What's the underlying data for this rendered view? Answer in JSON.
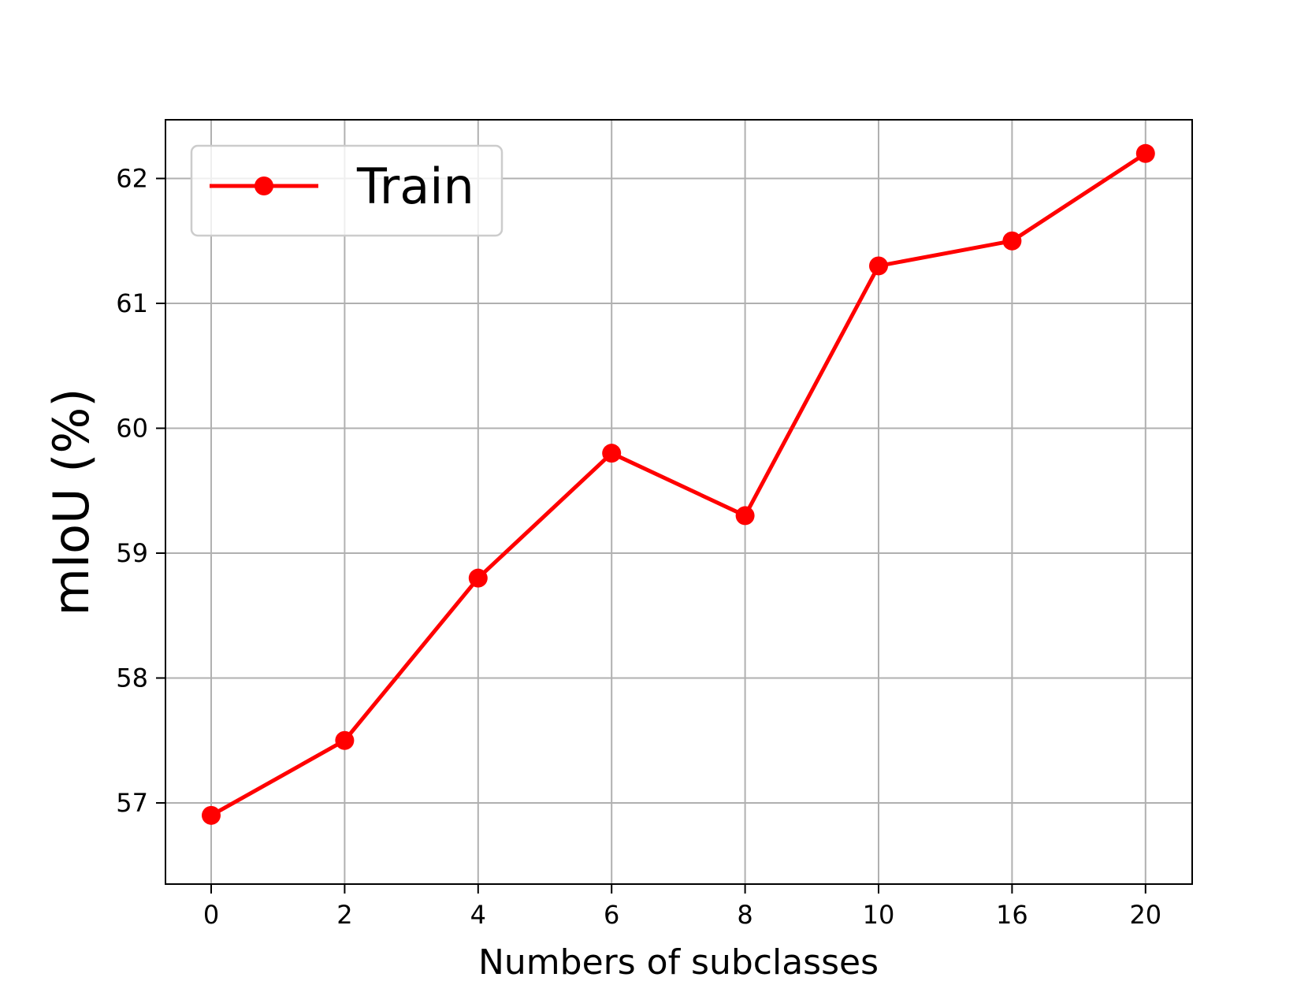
{
  "chart_data": {
    "type": "line",
    "title": "",
    "xlabel": "Numbers of subclasses",
    "ylabel": "mIoU (%)",
    "categories": [
      "0",
      "2",
      "4",
      "6",
      "8",
      "10",
      "16",
      "20"
    ],
    "series": [
      {
        "name": "Train",
        "color": "#ff0000",
        "values": [
          56.9,
          57.5,
          58.8,
          59.8,
          59.3,
          61.3,
          61.5,
          62.2
        ]
      }
    ],
    "yticks": [
      57,
      58,
      59,
      60,
      61,
      62
    ],
    "ylim": [
      56.35,
      62.47
    ],
    "grid": true,
    "legend_position": "top-left"
  }
}
